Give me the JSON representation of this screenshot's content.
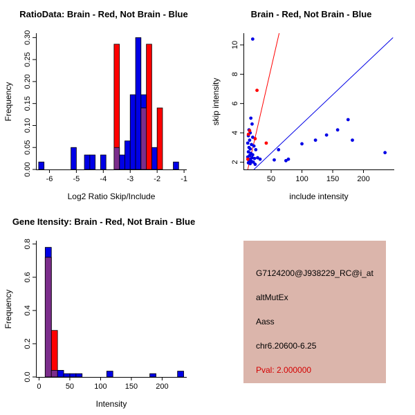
{
  "figure": {
    "bg": "#ffffff"
  },
  "colors": {
    "brain": "#ff0000",
    "not_brain": "#0000e6",
    "overlap": "#7b2d8b"
  },
  "panels": {
    "info": {
      "bg": "#dbb5ab",
      "lines": [
        {
          "text": "G7124200@J938229_RC@i_at",
          "color": "#000000"
        },
        {
          "text": "altMutEx",
          "color": "#000000"
        },
        {
          "text": "Aass",
          "color": "#000000"
        },
        {
          "text": "chr6.20600-6.25",
          "color": "#000000"
        },
        {
          "text": "Pval: 2.000000",
          "color": "#d40000"
        }
      ]
    }
  },
  "chart_data": [
    {
      "id": "ratio_hist",
      "type": "histogram",
      "title": "RatioData: Brain - Red, Not Brain - Blue",
      "xlabel": "Log2 Ratio Skip/Include",
      "ylabel": "Frequency",
      "xlim": [
        -6.5,
        -0.9
      ],
      "ylim": [
        0,
        0.31
      ],
      "xticks": [
        -6,
        -5,
        -4,
        -3,
        -2,
        -1
      ],
      "yticks": [
        0,
        0.05,
        0.1,
        0.15,
        0.2,
        0.25,
        0.3
      ],
      "ytick_labels": [
        "0.00",
        "0.05",
        "0.10",
        "0.15",
        "0.20",
        "0.25",
        "0.30"
      ],
      "bin_width": 0.2,
      "overlap_color": "#7b2d8b",
      "series": [
        {
          "name": "Not Brain",
          "color": "#0000e6",
          "bars": [
            [
              -6.4,
              0.017
            ],
            [
              -5.2,
              0.05
            ],
            [
              -4.7,
              0.033
            ],
            [
              -4.5,
              0.033
            ],
            [
              -4.1,
              0.033
            ],
            [
              -3.6,
              0.05
            ],
            [
              -3.4,
              0.033
            ],
            [
              -3.2,
              0.065
            ],
            [
              -3.0,
              0.17
            ],
            [
              -2.8,
              0.3
            ],
            [
              -2.6,
              0.17
            ],
            [
              -2.2,
              0.05
            ],
            [
              -1.4,
              0.017
            ]
          ]
        },
        {
          "name": "Brain",
          "color": "#ff0000",
          "bars": [
            [
              -3.6,
              0.285
            ],
            [
              -2.6,
              0.14
            ],
            [
              -2.4,
              0.285
            ],
            [
              -2.0,
              0.14
            ]
          ]
        }
      ]
    },
    {
      "id": "scatter",
      "type": "scatter",
      "title": "Brain - Red, Not Brain - Blue",
      "xlabel": "include intensity",
      "ylabel": "skip intensity",
      "xlim": [
        5,
        250
      ],
      "ylim": [
        1.5,
        10.8
      ],
      "xticks": [
        50,
        100,
        150,
        200
      ],
      "yticks": [
        2,
        4,
        6,
        8,
        10
      ],
      "series": [
        {
          "name": "Not Brain",
          "color": "#0000e6",
          "points": [
            [
              20,
              10.4
            ],
            [
              17,
              5.0
            ],
            [
              19,
              4.6
            ],
            [
              14,
              4.2
            ],
            [
              16,
              4.0
            ],
            [
              13,
              3.8
            ],
            [
              20,
              3.7
            ],
            [
              15,
              3.5
            ],
            [
              12,
              3.3
            ],
            [
              18,
              3.2
            ],
            [
              22,
              3.1
            ],
            [
              14,
              3.0
            ],
            [
              16,
              2.9
            ],
            [
              25,
              2.85
            ],
            [
              13,
              2.7
            ],
            [
              17,
              2.6
            ],
            [
              20,
              2.5
            ],
            [
              15,
              2.45
            ],
            [
              12,
              2.35
            ],
            [
              19,
              2.3
            ],
            [
              23,
              2.25
            ],
            [
              16,
              2.2
            ],
            [
              14,
              2.1
            ],
            [
              18,
              2.05
            ],
            [
              21,
              2.0
            ],
            [
              13,
              1.95
            ],
            [
              16,
              1.9
            ],
            [
              24,
              1.85
            ],
            [
              28,
              2.3
            ],
            [
              32,
              2.2
            ],
            [
              55,
              2.15
            ],
            [
              62,
              2.85
            ],
            [
              74,
              2.1
            ],
            [
              78,
              2.2
            ],
            [
              100,
              3.25
            ],
            [
              122,
              3.5
            ],
            [
              140,
              3.85
            ],
            [
              158,
              4.2
            ],
            [
              175,
              4.9
            ],
            [
              182,
              3.5
            ],
            [
              235,
              2.65
            ]
          ]
        },
        {
          "name": "Brain",
          "color": "#ff0000",
          "points": [
            [
              27,
              6.9
            ],
            [
              15,
              4.15
            ],
            [
              13,
              3.9
            ],
            [
              24,
              3.6
            ],
            [
              42,
              3.3
            ],
            [
              12,
              2.2
            ]
          ]
        }
      ],
      "lines": [
        {
          "color": "#ff0000",
          "x1": 12,
          "y1": 1.5,
          "x2": 63,
          "y2": 10.8
        },
        {
          "color": "#0000e6",
          "x1": 22,
          "y1": 1.5,
          "x2": 248,
          "y2": 10.5
        }
      ]
    },
    {
      "id": "gene_hist",
      "type": "histogram",
      "title": "Gene Itensity: Brain - Red, Not Brain - Blue",
      "xlabel": "Intensity",
      "ylabel": "Frequency",
      "xlim": [
        -5,
        240
      ],
      "ylim": [
        0,
        0.82
      ],
      "xticks": [
        0,
        50,
        100,
        150,
        200
      ],
      "yticks": [
        0,
        0.2,
        0.4,
        0.6,
        0.8
      ],
      "ytick_labels": [
        "0.0",
        "0.2",
        "0.4",
        "0.6",
        "0.8"
      ],
      "bin_width": 10,
      "overlap_color": "#7b2d8b",
      "series": [
        {
          "name": "Not Brain",
          "color": "#0000e6",
          "bars": [
            [
              10,
              0.78
            ],
            [
              20,
              0.04
            ],
            [
              30,
              0.04
            ],
            [
              40,
              0.02
            ],
            [
              50,
              0.02
            ],
            [
              60,
              0.02
            ],
            [
              110,
              0.035
            ],
            [
              180,
              0.02
            ],
            [
              225,
              0.035
            ]
          ]
        },
        {
          "name": "Brain",
          "color": "#ff0000",
          "bars": [
            [
              10,
              0.72
            ],
            [
              20,
              0.28
            ]
          ]
        }
      ]
    }
  ]
}
